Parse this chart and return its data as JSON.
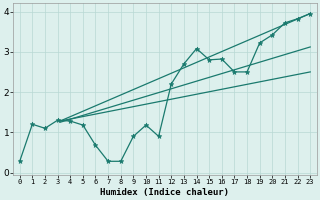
{
  "xlabel": "Humidex (Indice chaleur)",
  "ylabel": "",
  "xlim": [
    -0.5,
    23.5
  ],
  "ylim": [
    -0.05,
    4.2
  ],
  "yticks": [
    0,
    1,
    2,
    3,
    4
  ],
  "xticks": [
    0,
    1,
    2,
    3,
    4,
    5,
    6,
    7,
    8,
    9,
    10,
    11,
    12,
    13,
    14,
    15,
    16,
    17,
    18,
    19,
    20,
    21,
    22,
    23
  ],
  "bg_color": "#ddf0ed",
  "grid_color": "#b8d8d4",
  "line_color": "#1a7a6e",
  "line1_x": [
    0,
    1,
    2,
    3,
    4,
    5,
    6,
    7,
    8,
    9,
    10,
    11,
    12,
    13,
    14,
    15,
    16,
    17,
    18,
    19,
    20,
    21,
    22,
    23
  ],
  "line1_y": [
    0.28,
    1.2,
    1.1,
    1.3,
    1.28,
    1.18,
    0.68,
    0.28,
    0.28,
    0.9,
    1.18,
    0.9,
    2.2,
    2.7,
    3.08,
    2.8,
    2.82,
    2.5,
    2.5,
    3.22,
    3.42,
    3.72,
    3.82,
    3.95
  ],
  "line2_x": [
    3.2,
    23
  ],
  "line2_y": [
    1.28,
    3.95
  ],
  "line3_x": [
    3.2,
    23
  ],
  "line3_y": [
    1.28,
    2.5
  ],
  "line4_x": [
    3.2,
    23
  ],
  "line4_y": [
    1.25,
    3.12
  ],
  "figsize": [
    3.2,
    2.0
  ],
  "dpi": 100
}
